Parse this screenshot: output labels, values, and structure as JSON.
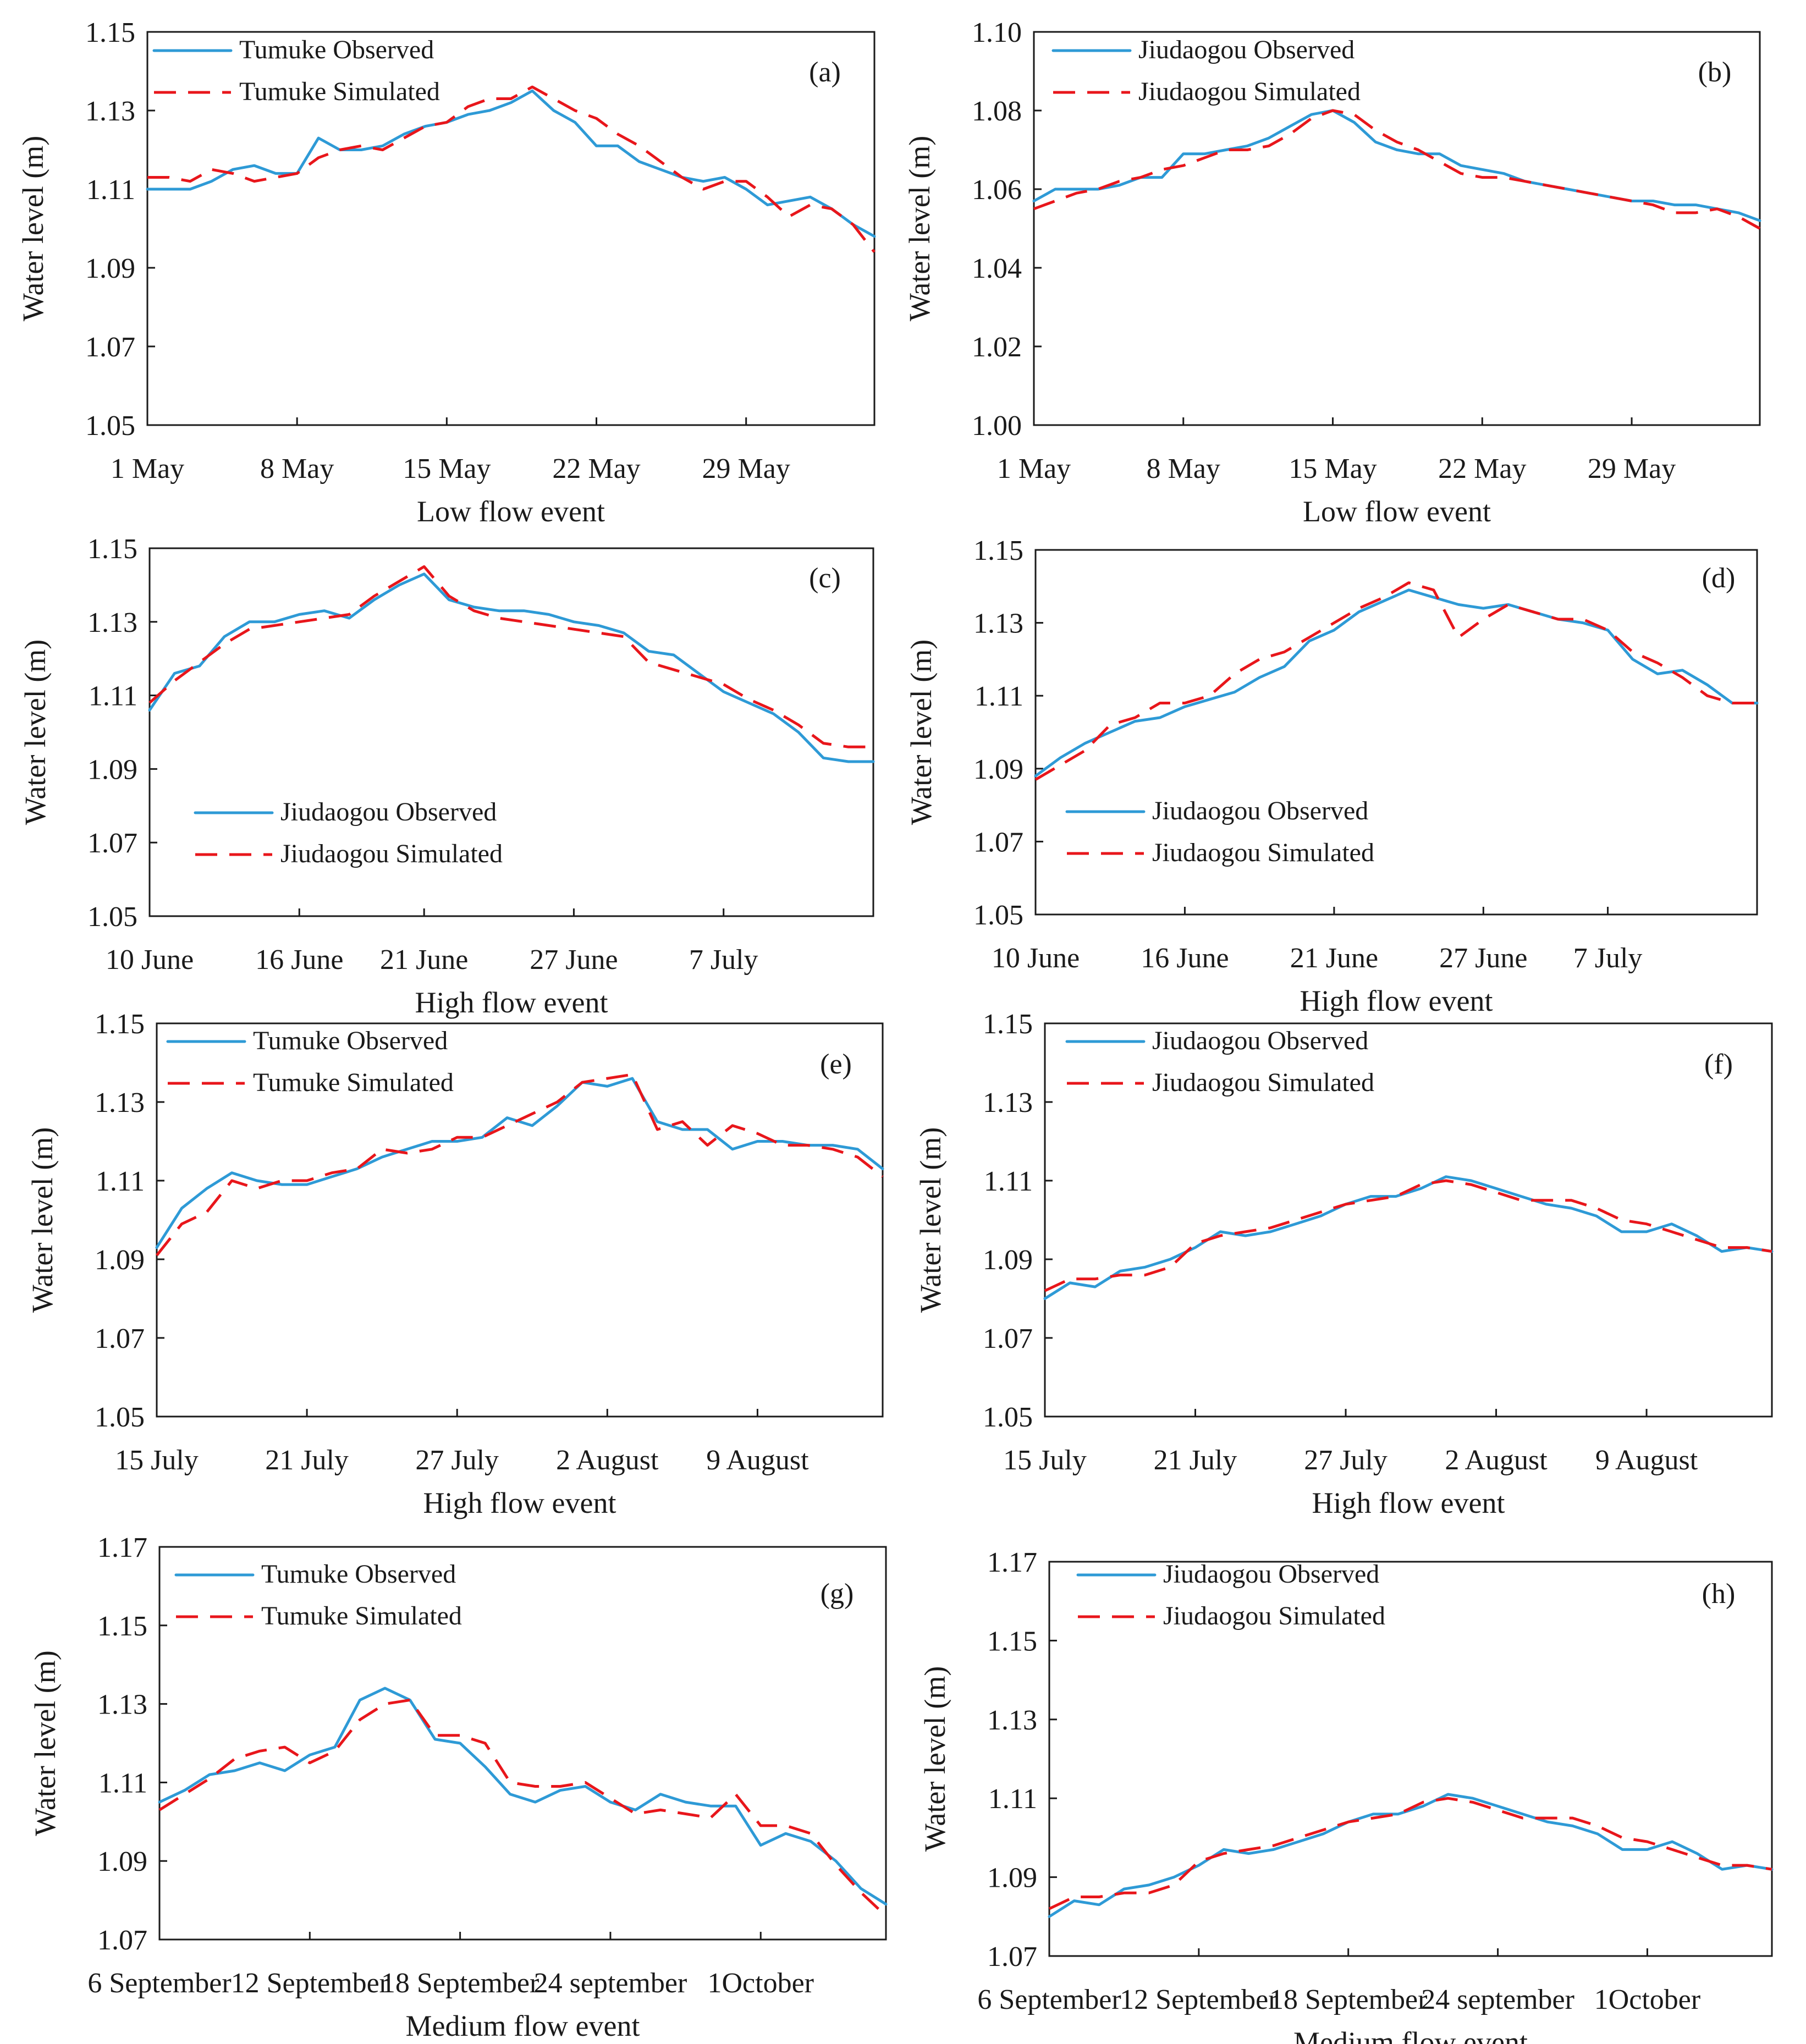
{
  "colors": {
    "observed": "#2e9ad6",
    "simulated": "#e8161b"
  },
  "chart_data": [
    {
      "type": "line",
      "panel": "(a)",
      "ylabel": "Water level (m)",
      "xlabel": "Low flow event",
      "ylim": [
        1.05,
        1.15
      ],
      "yticks": [
        "1.05",
        "1.07",
        "1.09",
        "1.11",
        "1.13",
        "1.15"
      ],
      "xticks": [
        "1 May",
        "8 May",
        "15 May",
        "22 May",
        "29 May"
      ],
      "xtick_values": [
        0,
        7,
        14,
        21,
        28
      ],
      "x": [
        0,
        1,
        2,
        3,
        4,
        5,
        6,
        7,
        8,
        9,
        10,
        11,
        12,
        13,
        14,
        15,
        16,
        17,
        18,
        19,
        20,
        21,
        22,
        23,
        24,
        25,
        26,
        27,
        28,
        29,
        30,
        31,
        32,
        33,
        34
      ],
      "legend_observed": "Tumuke Observed",
      "legend_simulated": "Tumuke Simulated",
      "series": [
        {
          "name": "Tumuke Observed",
          "values": [
            1.11,
            1.11,
            1.11,
            1.112,
            1.115,
            1.116,
            1.114,
            1.114,
            1.123,
            1.12,
            1.12,
            1.121,
            1.124,
            1.126,
            1.127,
            1.129,
            1.13,
            1.132,
            1.135,
            1.13,
            1.127,
            1.121,
            1.121,
            1.117,
            1.115,
            1.113,
            1.112,
            1.113,
            1.11,
            1.106,
            1.107,
            1.108,
            1.105,
            1.101,
            1.098
          ]
        },
        {
          "name": "Tumuke Simulated",
          "values": [
            1.113,
            1.113,
            1.112,
            1.115,
            1.114,
            1.112,
            1.113,
            1.114,
            1.118,
            1.12,
            1.121,
            1.12,
            1.123,
            1.126,
            1.127,
            1.131,
            1.133,
            1.133,
            1.136,
            1.133,
            1.13,
            1.128,
            1.124,
            1.121,
            1.117,
            1.113,
            1.11,
            1.112,
            1.112,
            1.108,
            1.103,
            1.106,
            1.105,
            1.101,
            1.094
          ]
        }
      ]
    },
    {
      "type": "line",
      "panel": "(b)",
      "ylabel": "Water level (m)",
      "xlabel": "Low flow event",
      "ylim": [
        1.0,
        1.1
      ],
      "yticks": [
        "1.00",
        "1.02",
        "1.04",
        "1.06",
        "1.08",
        "1.10"
      ],
      "xticks": [
        "1 May",
        "8 May",
        "15 May",
        "22 May",
        "29 May"
      ],
      "xtick_values": [
        0,
        7,
        14,
        21,
        28
      ],
      "x": [
        0,
        1,
        2,
        3,
        4,
        5,
        6,
        7,
        8,
        9,
        10,
        11,
        12,
        13,
        14,
        15,
        16,
        17,
        18,
        19,
        20,
        21,
        22,
        23,
        24,
        25,
        26,
        27,
        28,
        29,
        30,
        31,
        32,
        33,
        34
      ],
      "legend_observed": "Jiudaogou Observed",
      "legend_simulated": "Jiudaogou Simulated",
      "series": [
        {
          "name": "Jiudaogou Observed",
          "values": [
            1.057,
            1.06,
            1.06,
            1.06,
            1.061,
            1.063,
            1.063,
            1.069,
            1.069,
            1.07,
            1.071,
            1.073,
            1.076,
            1.079,
            1.08,
            1.077,
            1.072,
            1.07,
            1.069,
            1.069,
            1.066,
            1.065,
            1.064,
            1.062,
            1.061,
            1.06,
            1.059,
            1.058,
            1.057,
            1.057,
            1.056,
            1.056,
            1.055,
            1.054,
            1.052
          ]
        },
        {
          "name": "Jiudaogou Simulated",
          "values": [
            1.055,
            1.057,
            1.059,
            1.06,
            1.062,
            1.063,
            1.065,
            1.066,
            1.068,
            1.07,
            1.07,
            1.071,
            1.074,
            1.078,
            1.08,
            1.079,
            1.075,
            1.072,
            1.07,
            1.067,
            1.064,
            1.063,
            1.063,
            1.062,
            1.061,
            1.06,
            1.059,
            1.058,
            1.057,
            1.056,
            1.054,
            1.054,
            1.055,
            1.053,
            1.05
          ]
        }
      ]
    },
    {
      "type": "line",
      "panel": "(c)",
      "ylabel": "Water level (m)",
      "xlabel": "High flow event",
      "ylim": [
        1.05,
        1.15
      ],
      "yticks": [
        "1.05",
        "1.07",
        "1.09",
        "1.11",
        "1.13",
        "1.15"
      ],
      "xticks": [
        "10 June",
        "16 June",
        "21 June",
        "27 June",
        "7 July"
      ],
      "xtick_values": [
        0,
        6,
        11,
        17,
        23
      ],
      "x": [
        0,
        1,
        2,
        3,
        4,
        5,
        6,
        7,
        8,
        9,
        10,
        11,
        12,
        13,
        14,
        15,
        16,
        17,
        18,
        19,
        20,
        21,
        22,
        23,
        24,
        25,
        26,
        27,
        28,
        29
      ],
      "legend_observed": "Jiudaogou Observed",
      "legend_simulated": "Jiudaogou Simulated",
      "series": [
        {
          "name": "Jiudaogou Observed",
          "values": [
            1.106,
            1.116,
            1.118,
            1.126,
            1.13,
            1.13,
            1.132,
            1.133,
            1.131,
            1.136,
            1.14,
            1.143,
            1.136,
            1.134,
            1.133,
            1.133,
            1.132,
            1.13,
            1.129,
            1.127,
            1.122,
            1.121,
            1.116,
            1.111,
            1.108,
            1.105,
            1.1,
            1.093,
            1.092,
            1.092
          ]
        },
        {
          "name": "Jiudaogou Simulated",
          "values": [
            1.108,
            1.114,
            1.119,
            1.124,
            1.128,
            1.129,
            1.13,
            1.131,
            1.132,
            1.137,
            1.141,
            1.145,
            1.137,
            1.133,
            1.131,
            1.13,
            1.129,
            1.128,
            1.127,
            1.126,
            1.119,
            1.117,
            1.115,
            1.113,
            1.109,
            1.106,
            1.102,
            1.097,
            1.096,
            1.096
          ]
        }
      ]
    },
    {
      "type": "line",
      "panel": "(d)",
      "ylabel": "Water level (m)",
      "xlabel": "High flow event",
      "ylim": [
        1.05,
        1.15
      ],
      "yticks": [
        "1.05",
        "1.07",
        "1.09",
        "1.11",
        "1.13",
        "1.15"
      ],
      "xticks": [
        "10 June",
        "16 June",
        "21 June",
        "27 June",
        "7 July"
      ],
      "xtick_values": [
        0,
        6,
        12,
        18,
        23
      ],
      "x": [
        0,
        1,
        2,
        3,
        4,
        5,
        6,
        7,
        8,
        9,
        10,
        11,
        12,
        13,
        14,
        15,
        16,
        17,
        18,
        19,
        20,
        21,
        22,
        23,
        24,
        25,
        26,
        27,
        28,
        29
      ],
      "legend_observed": "Jiudaogou Observed",
      "legend_simulated": "Jiudaogou Simulated",
      "series": [
        {
          "name": "Jiudaogou Observed",
          "values": [
            1.088,
            1.093,
            1.097,
            1.1,
            1.103,
            1.104,
            1.107,
            1.109,
            1.111,
            1.115,
            1.118,
            1.125,
            1.128,
            1.133,
            1.136,
            1.139,
            1.137,
            1.135,
            1.134,
            1.135,
            1.133,
            1.131,
            1.13,
            1.128,
            1.12,
            1.116,
            1.117,
            1.113,
            1.108,
            1.108
          ]
        },
        {
          "name": "Jiudaogou Simulated",
          "values": [
            1.087,
            1.091,
            1.095,
            1.102,
            1.104,
            1.108,
            1.108,
            1.11,
            1.116,
            1.12,
            1.122,
            1.126,
            1.13,
            1.134,
            1.137,
            1.141,
            1.139,
            1.126,
            1.131,
            1.135,
            1.133,
            1.131,
            1.131,
            1.128,
            1.122,
            1.119,
            1.115,
            1.11,
            1.108,
            1.108
          ]
        }
      ]
    },
    {
      "type": "line",
      "panel": "(e)",
      "ylabel": "Water level (m)",
      "xlabel": "High flow event",
      "ylim": [
        1.05,
        1.15
      ],
      "yticks": [
        "1.05",
        "1.07",
        "1.09",
        "1.11",
        "1.13",
        "1.15"
      ],
      "xticks": [
        "15 July",
        "21 July",
        "27 July",
        "2 August",
        "9 August"
      ],
      "xtick_values": [
        0,
        6,
        12,
        18,
        24
      ],
      "x": [
        0,
        1,
        2,
        3,
        4,
        5,
        6,
        7,
        8,
        9,
        10,
        11,
        12,
        13,
        14,
        15,
        16,
        17,
        18,
        19,
        20,
        21,
        22,
        23,
        24,
        25,
        26,
        27,
        28,
        29
      ],
      "legend_observed": "Tumuke Observed",
      "legend_simulated": "Tumuke Simulated",
      "series": [
        {
          "name": "Tumuke Observed",
          "values": [
            1.093,
            1.103,
            1.108,
            1.112,
            1.11,
            1.109,
            1.109,
            1.111,
            1.113,
            1.116,
            1.118,
            1.12,
            1.12,
            1.121,
            1.126,
            1.124,
            1.129,
            1.135,
            1.134,
            1.136,
            1.125,
            1.123,
            1.123,
            1.118,
            1.12,
            1.12,
            1.119,
            1.119,
            1.118,
            1.113
          ]
        },
        {
          "name": "Tumuke Simulated",
          "values": [
            1.091,
            1.099,
            1.102,
            1.11,
            1.108,
            1.11,
            1.11,
            1.112,
            1.113,
            1.118,
            1.117,
            1.118,
            1.121,
            1.121,
            1.124,
            1.127,
            1.13,
            1.135,
            1.136,
            1.137,
            1.123,
            1.125,
            1.119,
            1.124,
            1.122,
            1.119,
            1.119,
            1.118,
            1.116,
            1.111
          ]
        }
      ]
    },
    {
      "type": "line",
      "panel": "(f)",
      "ylabel": "Water level (m)",
      "xlabel": "High flow event",
      "ylim": [
        1.05,
        1.15
      ],
      "yticks": [
        "1.05",
        "1.07",
        "1.09",
        "1.11",
        "1.13",
        "1.15"
      ],
      "xticks": [
        "15 July",
        "21 July",
        "27 July",
        "2 August",
        "9 August"
      ],
      "xtick_values": [
        0,
        6,
        12,
        18,
        24
      ],
      "x": [
        0,
        1,
        2,
        3,
        4,
        5,
        6,
        7,
        8,
        9,
        10,
        11,
        12,
        13,
        14,
        15,
        16,
        17,
        18,
        19,
        20,
        21,
        22,
        23,
        24,
        25,
        26,
        27,
        28,
        29
      ],
      "legend_observed": "Jiudaogou Observed",
      "legend_simulated": "Jiudaogou Simulated",
      "series": [
        {
          "name": "Jiudaogou Observed",
          "values": [
            1.08,
            1.084,
            1.083,
            1.087,
            1.088,
            1.09,
            1.093,
            1.097,
            1.096,
            1.097,
            1.099,
            1.101,
            1.104,
            1.106,
            1.106,
            1.108,
            1.111,
            1.11,
            1.108,
            1.106,
            1.104,
            1.103,
            1.101,
            1.097,
            1.097,
            1.099,
            1.096,
            1.092,
            1.093,
            1.092
          ]
        },
        {
          "name": "Jiudaogou Simulated",
          "values": [
            1.082,
            1.085,
            1.085,
            1.086,
            1.086,
            1.088,
            1.094,
            1.096,
            1.097,
            1.098,
            1.1,
            1.102,
            1.104,
            1.105,
            1.106,
            1.109,
            1.11,
            1.109,
            1.107,
            1.105,
            1.105,
            1.105,
            1.103,
            1.1,
            1.099,
            1.097,
            1.095,
            1.093,
            1.093,
            1.092
          ]
        }
      ]
    },
    {
      "type": "line",
      "panel": "(g)",
      "ylabel": "Water level (m)",
      "xlabel": "Medium flow event",
      "ylim": [
        1.07,
        1.17
      ],
      "yticks": [
        "1.07",
        "1.09",
        "1.11",
        "1.13",
        "1.15",
        "1.17"
      ],
      "xticks": [
        "6 September",
        "12 September",
        "18 September",
        "24 september",
        "1October"
      ],
      "xtick_values": [
        0,
        6,
        12,
        18,
        24
      ],
      "x": [
        0,
        1,
        2,
        3,
        4,
        5,
        6,
        7,
        8,
        9,
        10,
        11,
        12,
        13,
        14,
        15,
        16,
        17,
        18,
        19,
        20,
        21,
        22,
        23,
        24,
        25,
        26,
        27,
        28,
        29
      ],
      "legend_observed": "Tumuke Observed",
      "legend_simulated": "Tumuke Simulated",
      "series": [
        {
          "name": "Tumuke Observed",
          "values": [
            1.105,
            1.108,
            1.112,
            1.113,
            1.115,
            1.113,
            1.117,
            1.119,
            1.131,
            1.134,
            1.131,
            1.121,
            1.12,
            1.114,
            1.107,
            1.105,
            1.108,
            1.109,
            1.105,
            1.103,
            1.107,
            1.105,
            1.104,
            1.104,
            1.094,
            1.097,
            1.095,
            1.09,
            1.083,
            1.079
          ]
        },
        {
          "name": "Tumuke Simulated",
          "values": [
            1.103,
            1.107,
            1.111,
            1.116,
            1.118,
            1.119,
            1.115,
            1.118,
            1.126,
            1.13,
            1.131,
            1.122,
            1.122,
            1.12,
            1.11,
            1.109,
            1.109,
            1.11,
            1.106,
            1.102,
            1.103,
            1.102,
            1.101,
            1.107,
            1.099,
            1.099,
            1.097,
            1.089,
            1.082,
            1.076
          ]
        }
      ]
    },
    {
      "type": "line",
      "panel": "(h)",
      "ylabel": "Water level (m)",
      "xlabel": "Medium flow event",
      "ylim": [
        1.07,
        1.17
      ],
      "yticks": [
        "1.07",
        "1.09",
        "1.11",
        "1.13",
        "1.15",
        "1.17"
      ],
      "xticks": [
        "6 September",
        "12 September",
        "18 September",
        "24 september",
        "1October"
      ],
      "xtick_values": [
        0,
        6,
        12,
        18,
        24
      ],
      "x": [
        0,
        1,
        2,
        3,
        4,
        5,
        6,
        7,
        8,
        9,
        10,
        11,
        12,
        13,
        14,
        15,
        16,
        17,
        18,
        19,
        20,
        21,
        22,
        23,
        24,
        25,
        26,
        27,
        28,
        29
      ],
      "legend_observed": "Jiudaogou Observed",
      "legend_simulated": "Jiudaogou Simulated",
      "series": [
        {
          "name": "Jiudaogou Observed",
          "values": [
            1.08,
            1.084,
            1.083,
            1.087,
            1.088,
            1.09,
            1.093,
            1.097,
            1.096,
            1.097,
            1.099,
            1.101,
            1.104,
            1.106,
            1.106,
            1.108,
            1.111,
            1.11,
            1.108,
            1.106,
            1.104,
            1.103,
            1.101,
            1.097,
            1.097,
            1.099,
            1.096,
            1.092,
            1.093,
            1.092
          ]
        },
        {
          "name": "Jiudaogou Simulated",
          "values": [
            1.082,
            1.085,
            1.085,
            1.086,
            1.086,
            1.088,
            1.094,
            1.096,
            1.097,
            1.098,
            1.1,
            1.102,
            1.104,
            1.105,
            1.106,
            1.109,
            1.11,
            1.109,
            1.107,
            1.105,
            1.105,
            1.105,
            1.103,
            1.1,
            1.099,
            1.097,
            1.095,
            1.093,
            1.093,
            1.092
          ]
        }
      ]
    }
  ]
}
